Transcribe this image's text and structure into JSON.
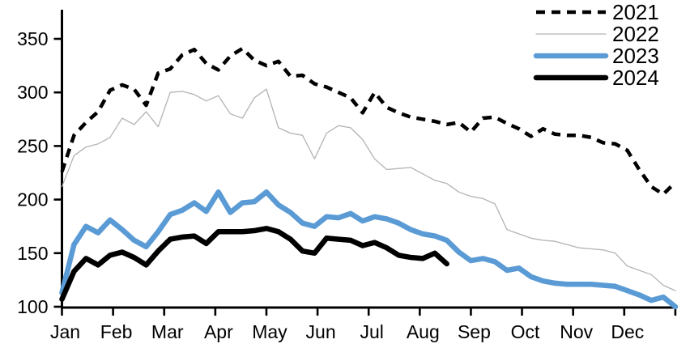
{
  "chart_data": {
    "type": "line",
    "title": "",
    "xlabel": "",
    "ylabel": "",
    "x_unit": "week-of-year",
    "months": [
      "Jan",
      "Feb",
      "Mar",
      "Apr",
      "May",
      "Jun",
      "Jul",
      "Aug",
      "Sep",
      "Oct",
      "Nov",
      "Dec"
    ],
    "y_ticks": [
      100,
      150,
      200,
      250,
      300,
      350
    ],
    "ylim": [
      100,
      360
    ],
    "grid": false,
    "legend_position": "top-right",
    "colors": {
      "series_2021": "#000000",
      "series_2022": "#b3b3b3",
      "series_2023": "#5b9bd5",
      "series_2024": "#000000",
      "axis": "#000000"
    },
    "series": [
      {
        "name": "2021",
        "style": "dashed",
        "color": "#000000",
        "width": 4.5,
        "values": [
          226,
          260,
          272,
          282,
          302,
          307,
          303,
          288,
          318,
          322,
          335,
          340,
          327,
          321,
          334,
          341,
          330,
          325,
          329,
          315,
          316,
          308,
          305,
          300,
          295,
          281,
          300,
          286,
          281,
          277,
          275,
          273,
          270,
          272,
          263,
          276,
          277,
          271,
          266,
          259,
          266,
          261,
          260,
          260,
          258,
          253,
          252,
          246,
          228,
          212,
          205,
          216
        ]
      },
      {
        "name": "2022",
        "style": "solid",
        "color": "#b3b3b3",
        "width": 1.3,
        "values": [
          212,
          241,
          249,
          252,
          258,
          276,
          270,
          282,
          268,
          300,
          301,
          298,
          292,
          297,
          280,
          276,
          295,
          303,
          267,
          262,
          260,
          238,
          262,
          269,
          267,
          256,
          238,
          228,
          229,
          230,
          224,
          218,
          215,
          207,
          203,
          201,
          196,
          172,
          168,
          164,
          162,
          161,
          158,
          155,
          154,
          153,
          150,
          138,
          134,
          130,
          120,
          115
        ]
      },
      {
        "name": "2023",
        "style": "solid",
        "color": "#5b9bd5",
        "width": 6.5,
        "values": [
          113,
          158,
          175,
          169,
          181,
          172,
          162,
          156,
          170,
          186,
          190,
          197,
          189,
          207,
          188,
          197,
          198,
          207,
          195,
          188,
          178,
          175,
          184,
          183,
          187,
          180,
          184,
          182,
          178,
          172,
          168,
          166,
          162,
          151,
          143,
          145,
          142,
          134,
          136,
          128,
          124,
          122,
          121,
          121,
          121,
          120,
          119,
          115,
          111,
          106,
          109,
          100
        ]
      },
      {
        "name": "2024",
        "style": "solid",
        "color": "#000000",
        "width": 6.5,
        "values": [
          107,
          133,
          145,
          139,
          148,
          151,
          146,
          139,
          152,
          163,
          165,
          166,
          159,
          170,
          170,
          170,
          171,
          173,
          170,
          163,
          152,
          150,
          164,
          163,
          162,
          157,
          160,
          155,
          148,
          146,
          145,
          150,
          140
        ]
      }
    ]
  }
}
